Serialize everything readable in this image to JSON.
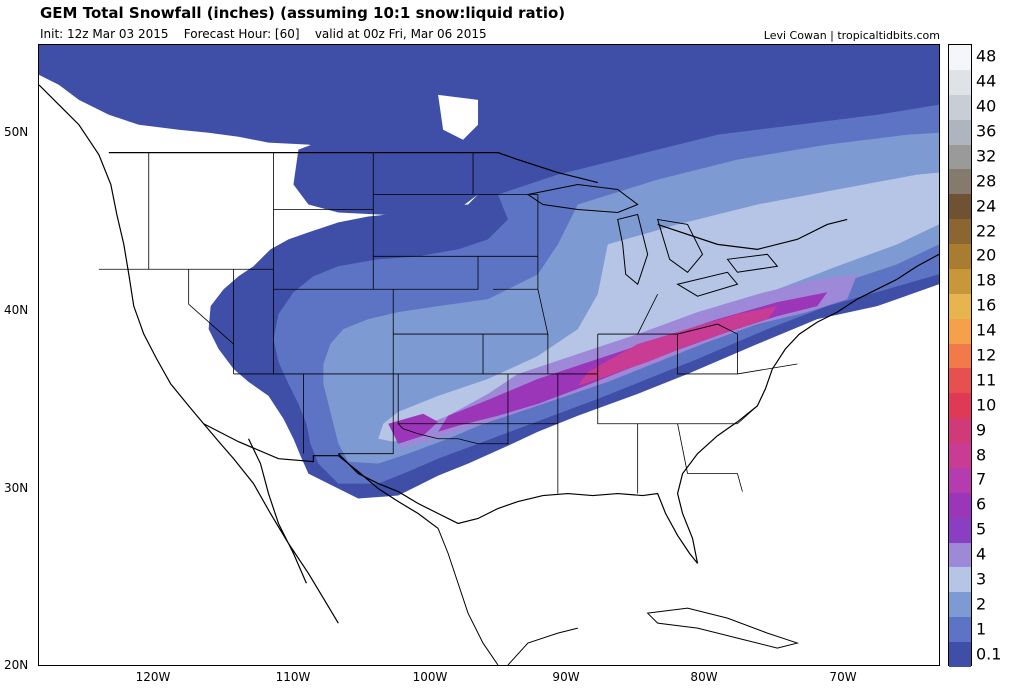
{
  "header": {
    "title": "GEM Total Snowfall (inches) (assuming 10:1 snow:liquid ratio)",
    "init": "Init: 12z Mar 03 2015",
    "forecast_hour": "Forecast Hour: [60]",
    "valid": "valid at 00z Fri, Mar 06 2015",
    "credit": "Levi Cowan | tropicaltidbits.com"
  },
  "axes": {
    "lat_labels": [
      "50N",
      "40N",
      "30N",
      "20N"
    ],
    "lon_labels": [
      "120W",
      "110W",
      "100W",
      "90W",
      "80W",
      "70W"
    ]
  },
  "legend": {
    "labels": [
      "48",
      "44",
      "40",
      "36",
      "32",
      "28",
      "24",
      "22",
      "20",
      "18",
      "16",
      "14",
      "12",
      "11",
      "10",
      "9",
      "8",
      "7",
      "6",
      "5",
      "4",
      "3",
      "2",
      "1",
      "0.1"
    ],
    "colors": [
      "#f4f6f9",
      "#dfe3e8",
      "#c8ced6",
      "#aeb5be",
      "#9a9a9a",
      "#857a6c",
      "#6e5232",
      "#8b6630",
      "#a87d32",
      "#c8973a",
      "#e8b450",
      "#f5a04a",
      "#f07a4a",
      "#e6504e",
      "#de3a55",
      "#d03a78",
      "#c83c94",
      "#b43cb0",
      "#9b36b8",
      "#8a3ec2",
      "#9e88d8",
      "#b6c4e6",
      "#7e9ad2",
      "#5d74c4",
      "#3f4fa8"
    ]
  }
}
